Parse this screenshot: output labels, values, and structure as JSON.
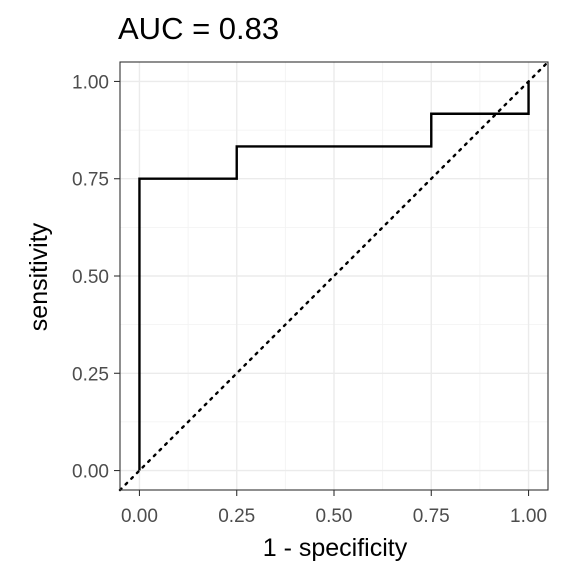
{
  "chart_data": {
    "type": "line",
    "title": "AUC = 0.83",
    "xlabel": "1 - specificity",
    "ylabel": "sensitivity",
    "xlim": [
      -0.05,
      1.05
    ],
    "ylim": [
      -0.05,
      1.05
    ],
    "x_ticks": [
      0,
      0.25,
      0.5,
      0.75,
      1
    ],
    "x_tick_labels": [
      "0.00",
      "0.25",
      "0.50",
      "0.75",
      "1.00"
    ],
    "y_ticks": [
      0,
      0.25,
      0.5,
      0.75,
      1
    ],
    "y_tick_labels": [
      "0.00",
      "0.25",
      "0.50",
      "0.75",
      "1.00"
    ],
    "grid": true,
    "series": [
      {
        "style": "step",
        "color": "#000000",
        "x": [
          0,
          0,
          0.25,
          0.25,
          0.75,
          0.75,
          1,
          1
        ],
        "y": [
          0,
          0.75,
          0.75,
          0.833,
          0.833,
          0.917,
          0.917,
          1
        ]
      }
    ],
    "reference_line": {
      "style": "dotted",
      "color": "#000000",
      "x": [
        -0.05,
        1.05
      ],
      "y": [
        -0.05,
        1.05
      ]
    }
  }
}
